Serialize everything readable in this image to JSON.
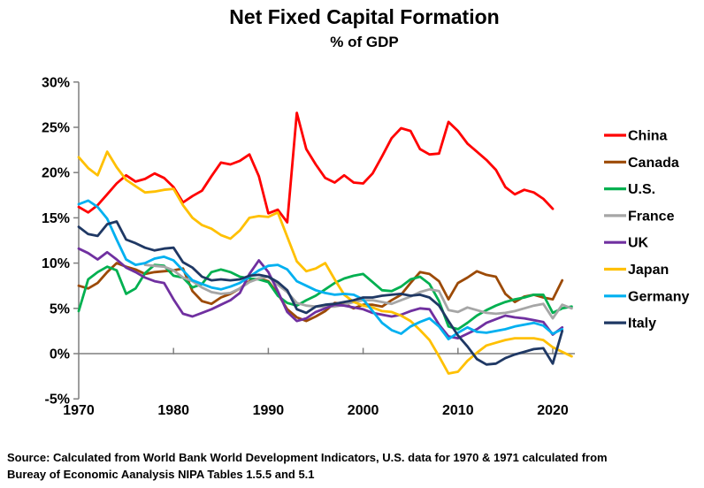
{
  "page": {
    "title": "Net Fixed Capital Formation",
    "subtitle": "% of GDP"
  },
  "chart_data": {
    "type": "line",
    "title": "Net Fixed Capital Formation",
    "subtitle": "% of GDP",
    "legend_position": "right",
    "grid": "off",
    "background": "#ffffff",
    "axis_color": "#7f7f7f",
    "text_color": "#000000",
    "x_axis": {
      "label": "",
      "ticks": [
        1970,
        1980,
        1990,
        2000,
        2010,
        2020
      ],
      "range": [
        1970,
        2022.5
      ]
    },
    "y_axis": {
      "label": "",
      "unit": "%",
      "ticks": [
        30,
        25,
        20,
        15,
        10,
        5,
        0,
        -5
      ],
      "range": [
        -5,
        30
      ]
    },
    "source": {
      "line1": "Source:  Calculated from World Bank World Development Indicators, U.S. data for 1970 & 1971 calculated from",
      "line2": "Bureay of Economic Aanalysis NIPA Tables 1.5.5 and 5.1"
    },
    "series": [
      {
        "name": "China",
        "color": "#FF0000",
        "start_year": 1970,
        "end_year": 2020,
        "values": [
          16.2,
          15.6,
          16.4,
          17.6,
          18.8,
          19.7,
          19.0,
          19.3,
          19.9,
          19.4,
          18.4,
          16.7,
          17.4,
          18.0,
          19.6,
          21.1,
          20.9,
          21.3,
          22.0,
          19.6,
          15.5,
          15.9,
          14.5,
          26.6,
          22.6,
          20.9,
          19.4,
          18.9,
          19.7,
          18.9,
          18.8,
          19.9,
          21.8,
          23.8,
          24.9,
          24.6,
          22.6,
          22.0,
          22.1,
          25.6,
          24.6,
          23.2,
          22.3,
          21.4,
          20.3,
          18.4,
          17.6,
          18.1,
          17.8,
          17.1,
          16.0
        ]
      },
      {
        "name": "Canada",
        "color": "#9C4A06",
        "start_year": 1970,
        "end_year": 2021,
        "values": [
          7.5,
          7.2,
          7.8,
          9.0,
          10.0,
          9.6,
          9.3,
          8.8,
          9.0,
          9.1,
          9.2,
          9.4,
          6.9,
          5.8,
          5.5,
          6.2,
          6.6,
          7.2,
          8.0,
          8.3,
          8.0,
          6.6,
          4.9,
          4.0,
          3.6,
          4.1,
          4.7,
          5.6,
          5.5,
          5.0,
          5.4,
          5.4,
          5.2,
          5.9,
          6.5,
          7.8,
          9.0,
          8.8,
          8.0,
          6.0,
          7.8,
          8.4,
          9.1,
          8.7,
          8.5,
          6.6,
          5.7,
          6.3,
          6.5,
          6.2,
          6.0,
          8.1
        ]
      },
      {
        "name": "U.S.",
        "color": "#00B050",
        "start_year": 1970,
        "end_year": 2022,
        "values": [
          4.7,
          8.2,
          9.0,
          9.6,
          9.2,
          6.6,
          7.2,
          8.9,
          9.8,
          9.7,
          8.6,
          8.4,
          7.3,
          7.7,
          9.0,
          9.3,
          9.0,
          8.5,
          8.3,
          8.2,
          7.9,
          6.4,
          5.6,
          5.3,
          5.9,
          6.4,
          7.1,
          7.8,
          8.3,
          8.6,
          8.8,
          7.9,
          7.0,
          6.9,
          7.4,
          8.2,
          8.5,
          7.7,
          5.8,
          3.0,
          2.7,
          3.4,
          4.2,
          4.8,
          5.3,
          5.7,
          6.0,
          6.2,
          6.5,
          6.5,
          4.5,
          5.0,
          5.2
        ]
      },
      {
        "name": "France",
        "color": "#A6A6A6",
        "start_year": 1977,
        "end_year": 2022,
        "values": [
          9.8,
          9.7,
          9.6,
          9.2,
          8.4,
          8.0,
          7.3,
          6.8,
          6.6,
          6.7,
          7.2,
          7.9,
          8.3,
          8.5,
          7.6,
          6.8,
          5.6,
          5.3,
          5.2,
          5.2,
          5.2,
          5.4,
          5.7,
          5.9,
          5.9,
          5.7,
          5.5,
          5.9,
          6.3,
          6.8,
          7.1,
          6.9,
          4.8,
          4.6,
          5.1,
          4.8,
          4.5,
          4.4,
          4.5,
          4.7,
          5.0,
          5.3,
          5.5,
          3.9,
          5.4,
          5.0
        ]
      },
      {
        "name": "UK",
        "color": "#7030A0",
        "start_year": 1970,
        "end_year": 2021,
        "values": [
          11.6,
          11.1,
          10.4,
          11.2,
          10.4,
          9.5,
          9.0,
          8.4,
          8.0,
          7.8,
          6.0,
          4.4,
          4.1,
          4.5,
          4.9,
          5.4,
          5.9,
          6.7,
          8.8,
          10.3,
          9.0,
          6.9,
          4.6,
          3.6,
          3.9,
          4.6,
          5.0,
          5.4,
          5.3,
          5.1,
          4.9,
          4.5,
          4.3,
          4.1,
          4.3,
          4.7,
          5.0,
          4.9,
          3.2,
          1.9,
          1.7,
          2.2,
          2.7,
          3.4,
          3.8,
          4.2,
          4.0,
          3.9,
          3.7,
          3.5,
          2.1,
          2.9
        ]
      },
      {
        "name": "Japan",
        "color": "#FFC000",
        "start_year": 1970,
        "end_year": 2022,
        "values": [
          21.7,
          20.5,
          19.7,
          22.3,
          20.6,
          19.2,
          18.5,
          17.8,
          17.9,
          18.1,
          18.2,
          16.4,
          15.0,
          14.2,
          13.8,
          13.1,
          12.7,
          13.6,
          15.0,
          15.2,
          15.1,
          15.6,
          12.9,
          10.2,
          9.1,
          9.4,
          10.0,
          8.2,
          6.5,
          5.7,
          5.3,
          5.1,
          4.7,
          4.6,
          4.2,
          3.6,
          2.6,
          1.5,
          -0.3,
          -2.2,
          -2.0,
          -0.8,
          0.1,
          0.9,
          1.2,
          1.5,
          1.7,
          1.7,
          1.7,
          1.5,
          0.7,
          0.2,
          -0.3
        ]
      },
      {
        "name": "Germany",
        "color": "#00B0F0",
        "start_year": 1970,
        "end_year": 2021,
        "values": [
          16.5,
          16.9,
          16.2,
          14.9,
          12.6,
          10.4,
          9.8,
          10.0,
          10.5,
          10.7,
          10.3,
          9.2,
          8.1,
          7.7,
          7.3,
          7.1,
          7.4,
          7.8,
          8.5,
          9.2,
          9.7,
          9.8,
          9.3,
          8.0,
          7.5,
          7.0,
          6.7,
          6.5,
          6.6,
          6.5,
          6.0,
          4.7,
          3.4,
          2.6,
          2.2,
          3.0,
          3.5,
          3.9,
          3.0,
          1.6,
          2.3,
          2.9,
          2.4,
          2.3,
          2.5,
          2.7,
          3.0,
          3.2,
          3.4,
          3.1,
          2.2,
          2.7
        ]
      },
      {
        "name": "Italy",
        "color": "#1F3864",
        "start_year": 1970,
        "end_year": 2021,
        "values": [
          14.0,
          13.2,
          13.0,
          14.3,
          14.6,
          12.6,
          12.2,
          11.7,
          11.4,
          11.6,
          11.7,
          10.1,
          9.5,
          8.5,
          8.1,
          8.2,
          8.1,
          8.2,
          8.6,
          8.7,
          8.5,
          7.9,
          7.0,
          4.9,
          4.5,
          5.2,
          5.4,
          5.5,
          5.7,
          5.9,
          6.2,
          6.2,
          6.4,
          6.5,
          6.6,
          6.4,
          6.5,
          6.2,
          5.3,
          3.6,
          2.0,
          0.8,
          -0.6,
          -1.2,
          -1.1,
          -0.5,
          -0.1,
          0.2,
          0.5,
          0.6,
          -1.1,
          2.5
        ]
      }
    ]
  }
}
